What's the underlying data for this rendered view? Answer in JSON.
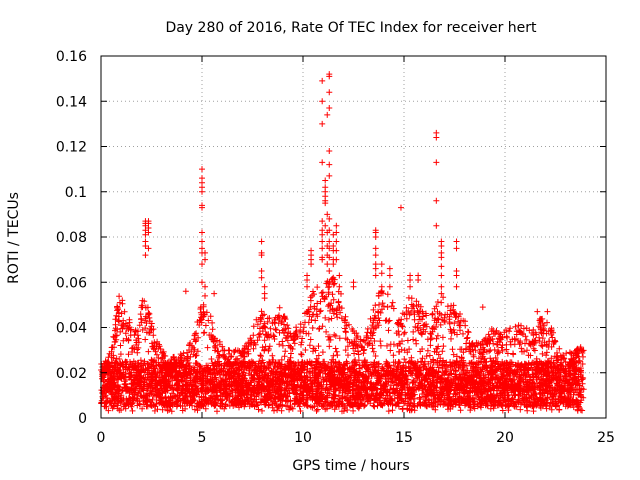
{
  "chart_data": {
    "type": "scatter",
    "title": "Day 280 of 2016, Rate Of TEC Index for receiver hert",
    "xlabel": "GPS time / hours",
    "ylabel": "ROTI / TECUs",
    "xlim": [
      0,
      25
    ],
    "ylim": [
      0,
      0.16
    ],
    "xticks": [
      0,
      5,
      10,
      15,
      20,
      25
    ],
    "xtick_labels": [
      "0",
      "5",
      "10",
      "15",
      "20",
      "25"
    ],
    "yticks": [
      0,
      0.02,
      0.04,
      0.06,
      0.08,
      0.1,
      0.12,
      0.14,
      0.16
    ],
    "ytick_labels": [
      "0",
      "0.02",
      "0.04",
      "0.06",
      "0.08",
      "0.1",
      "0.12",
      "0.14",
      "0.16"
    ],
    "grid": true,
    "marker": "plus",
    "color": "#ff0000",
    "x_data_range": [
      0,
      23.9
    ],
    "bulk_band": [
      0.005,
      0.025
    ],
    "envelope": [
      [
        0.0,
        0.024
      ],
      [
        0.5,
        0.03
      ],
      [
        0.9,
        0.057
      ],
      [
        1.3,
        0.045
      ],
      [
        1.8,
        0.038
      ],
      [
        2.1,
        0.055
      ],
      [
        2.3,
        0.05
      ],
      [
        2.7,
        0.036
      ],
      [
        3.2,
        0.028
      ],
      [
        3.8,
        0.027
      ],
      [
        4.3,
        0.032
      ],
      [
        4.6,
        0.036
      ],
      [
        4.9,
        0.05
      ],
      [
        5.3,
        0.05
      ],
      [
        5.7,
        0.036
      ],
      [
        6.2,
        0.03
      ],
      [
        6.8,
        0.03
      ],
      [
        7.3,
        0.035
      ],
      [
        7.9,
        0.048
      ],
      [
        8.4,
        0.045
      ],
      [
        8.9,
        0.05
      ],
      [
        9.4,
        0.04
      ],
      [
        9.9,
        0.042
      ],
      [
        10.4,
        0.055
      ],
      [
        10.9,
        0.06
      ],
      [
        11.4,
        0.065
      ],
      [
        11.9,
        0.055
      ],
      [
        12.4,
        0.04
      ],
      [
        12.9,
        0.035
      ],
      [
        13.4,
        0.045
      ],
      [
        13.8,
        0.06
      ],
      [
        14.3,
        0.055
      ],
      [
        14.8,
        0.045
      ],
      [
        15.3,
        0.055
      ],
      [
        15.8,
        0.05
      ],
      [
        16.3,
        0.045
      ],
      [
        16.8,
        0.055
      ],
      [
        17.3,
        0.05
      ],
      [
        17.8,
        0.05
      ],
      [
        18.3,
        0.035
      ],
      [
        18.8,
        0.033
      ],
      [
        19.3,
        0.04
      ],
      [
        19.8,
        0.038
      ],
      [
        20.3,
        0.04
      ],
      [
        20.8,
        0.042
      ],
      [
        21.3,
        0.038
      ],
      [
        21.8,
        0.045
      ],
      [
        22.3,
        0.04
      ],
      [
        22.8,
        0.028
      ],
      [
        23.4,
        0.03
      ],
      [
        23.9,
        0.032
      ]
    ],
    "outliers": [
      {
        "x": 2.2,
        "y": [
          0.072,
          0.076,
          0.078,
          0.081,
          0.083,
          0.085,
          0.086,
          0.087
        ]
      },
      {
        "x": 2.35,
        "y": [
          0.075,
          0.082,
          0.084,
          0.086,
          0.087
        ]
      },
      {
        "x": 4.2,
        "y": [
          0.056
        ]
      },
      {
        "x": 5.0,
        "y": [
          0.06,
          0.068,
          0.073,
          0.075,
          0.078,
          0.082,
          0.093,
          0.094,
          0.1,
          0.102,
          0.104,
          0.106,
          0.11
        ]
      },
      {
        "x": 5.15,
        "y": [
          0.054,
          0.058,
          0.07,
          0.073
        ]
      },
      {
        "x": 5.6,
        "y": [
          0.055
        ]
      },
      {
        "x": 7.95,
        "y": [
          0.062,
          0.065,
          0.072,
          0.073,
          0.078
        ]
      },
      {
        "x": 8.1,
        "y": [
          0.053,
          0.055,
          0.058
        ]
      },
      {
        "x": 10.2,
        "y": [
          0.058,
          0.061,
          0.063
        ]
      },
      {
        "x": 10.4,
        "y": [
          0.068,
          0.07,
          0.072,
          0.074
        ]
      },
      {
        "x": 10.95,
        "y": [
          0.07,
          0.071,
          0.075,
          0.078,
          0.081,
          0.083,
          0.087,
          0.113,
          0.13,
          0.14,
          0.149
        ]
      },
      {
        "x": 11.1,
        "y": [
          0.085,
          0.095,
          0.096,
          0.1,
          0.102,
          0.098,
          0.105
        ]
      },
      {
        "x": 11.2,
        "y": [
          0.068,
          0.072,
          0.076,
          0.082,
          0.09,
          0.134
        ]
      },
      {
        "x": 11.3,
        "y": [
          0.058,
          0.06,
          0.065,
          0.071,
          0.075,
          0.078,
          0.083,
          0.088,
          0.107,
          0.112,
          0.118,
          0.137,
          0.144,
          0.151,
          0.152
        ]
      },
      {
        "x": 11.5,
        "y": [
          0.062,
          0.068,
          0.07,
          0.074,
          0.076,
          0.081
        ]
      },
      {
        "x": 11.65,
        "y": [
          0.07,
          0.074,
          0.078,
          0.082,
          0.085
        ]
      },
      {
        "x": 11.8,
        "y": [
          0.058,
          0.063
        ]
      },
      {
        "x": 12.5,
        "y": [
          0.058,
          0.06
        ]
      },
      {
        "x": 13.6,
        "y": [
          0.063,
          0.066,
          0.068,
          0.072,
          0.075,
          0.08,
          0.082,
          0.083
        ]
      },
      {
        "x": 13.9,
        "y": [
          0.058,
          0.064,
          0.068
        ]
      },
      {
        "x": 14.3,
        "y": [
          0.058,
          0.063,
          0.066
        ]
      },
      {
        "x": 14.85,
        "y": [
          0.093
        ]
      },
      {
        "x": 15.3,
        "y": [
          0.058,
          0.061,
          0.063
        ]
      },
      {
        "x": 15.7,
        "y": [
          0.061,
          0.063
        ]
      },
      {
        "x": 16.6,
        "y": [
          0.085,
          0.096,
          0.113,
          0.124,
          0.126
        ]
      },
      {
        "x": 16.85,
        "y": [
          0.055,
          0.058,
          0.063,
          0.067,
          0.071,
          0.073,
          0.076,
          0.078
        ]
      },
      {
        "x": 17.6,
        "y": [
          0.058,
          0.063,
          0.065,
          0.075,
          0.078
        ]
      },
      {
        "x": 18.9,
        "y": [
          0.049
        ]
      },
      {
        "x": 21.6,
        "y": [
          0.047
        ]
      },
      {
        "x": 22.1,
        "y": [
          0.047
        ]
      }
    ]
  }
}
